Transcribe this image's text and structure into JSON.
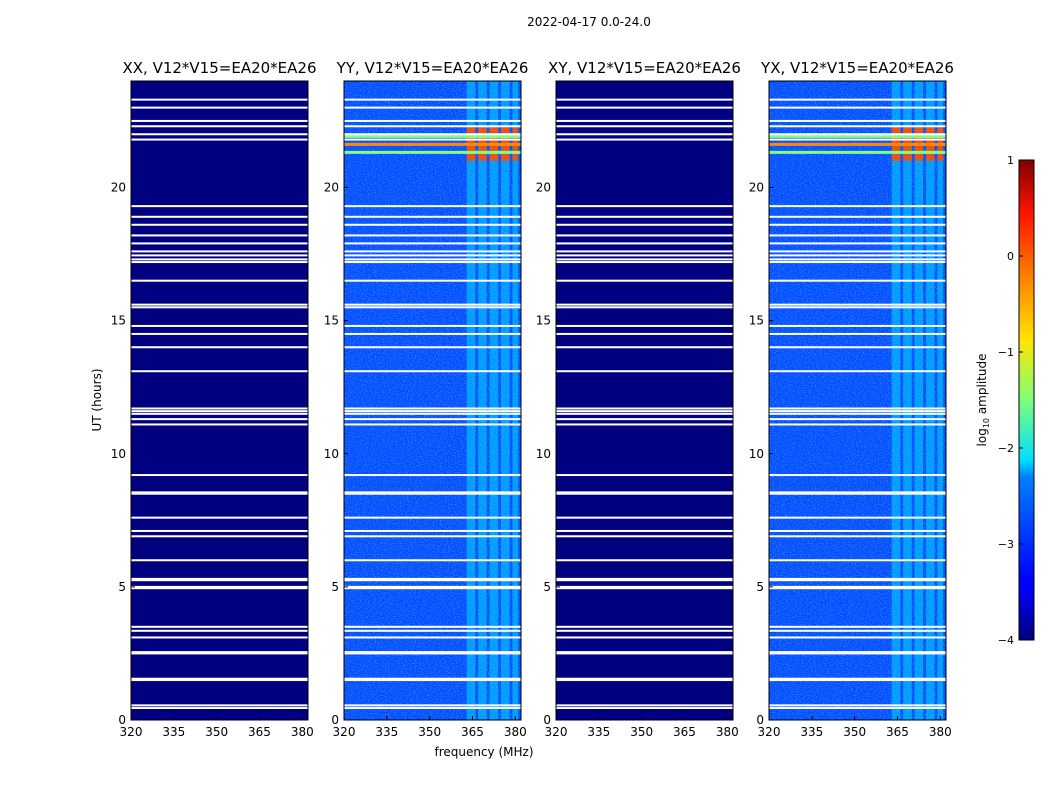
{
  "chart_data": {
    "type": "heatmap",
    "suptitle": "2022-04-17 0.0-24.0",
    "xlabel": "frequency (MHz)",
    "ylabel": "UT (hours)",
    "xlim": [
      320,
      382
    ],
    "ylim": [
      0,
      24
    ],
    "xticks": [
      320,
      335,
      350,
      365,
      380
    ],
    "yticks": [
      0,
      5,
      10,
      15,
      20
    ],
    "colorbar": {
      "label_main": "log",
      "label_sub": "10",
      "label_rest": " amplitude",
      "range": [
        -4,
        1
      ],
      "ticks": [
        -4,
        -3,
        -2,
        -1,
        0,
        1
      ],
      "tick_labels": [
        "−4",
        "−3",
        "−2",
        "−1",
        "0",
        "1"
      ],
      "colormap": "jet"
    },
    "flagged_hours": [
      0.45,
      0.55,
      1.5,
      1.55,
      2.5,
      2.55,
      3.1,
      3.35,
      3.5,
      4.95,
      5.0,
      5.25,
      5.3,
      6.0,
      6.9,
      7.1,
      7.6,
      8.5,
      8.55,
      9.2,
      11.1,
      11.3,
      11.5,
      11.6,
      11.7,
      13.1,
      14.0,
      14.5,
      14.8,
      15.5,
      15.6,
      16.5,
      17.2,
      17.3,
      17.45,
      17.6,
      17.9,
      18.2,
      18.6,
      18.9,
      19.3,
      21.8,
      22.0,
      22.3,
      22.5,
      23.0,
      23.3
    ],
    "rfi_channel_bands_mhz": [
      [
        363,
        366
      ],
      [
        367,
        370
      ],
      [
        371,
        374
      ],
      [
        375,
        378
      ],
      [
        379,
        381
      ]
    ],
    "panels": [
      {
        "id": "xx",
        "title": "XX, V12*V15=EA20*EA26",
        "state": "blank",
        "mean_log10_amplitude": -4.0
      },
      {
        "id": "yy",
        "title": "YY, V12*V15=EA20*EA26",
        "state": "data",
        "mean_log10_amplitude": -3.0,
        "rfi_peak_log10_amplitude": 0.0,
        "rfi_peak_hours": [
          21.0,
          22.3
        ]
      },
      {
        "id": "xy",
        "title": "XY, V12*V15=EA20*EA26",
        "state": "blank",
        "mean_log10_amplitude": -4.0
      },
      {
        "id": "yx",
        "title": "YX, V12*V15=EA20*EA26",
        "state": "data",
        "mean_log10_amplitude": -3.0,
        "rfi_peak_log10_amplitude": 0.0,
        "rfi_peak_hours": [
          21.0,
          22.3
        ]
      }
    ]
  }
}
